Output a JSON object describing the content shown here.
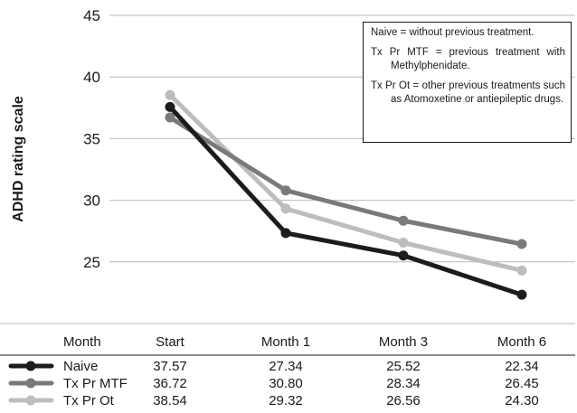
{
  "chart_data": {
    "type": "line",
    "ylabel": "ADHD rating scale",
    "ylim": [
      20,
      45
    ],
    "yticks": [
      25,
      30,
      35,
      40,
      45
    ],
    "grid": true,
    "x_header": "Month",
    "categories": [
      "Start",
      "Month 1",
      "Month 3",
      "Month 6"
    ],
    "series": [
      {
        "name": "Naive",
        "color": "#1c1c1c",
        "values": [
          37.57,
          27.34,
          25.52,
          22.34
        ],
        "labels": [
          "37.57",
          "27.34",
          "25.52",
          "22.34"
        ]
      },
      {
        "name": "Tx Pr MTF",
        "color": "#7a7a7a",
        "values": [
          36.72,
          30.8,
          28.34,
          26.45
        ],
        "labels": [
          "36.72",
          "30.80",
          "28.34",
          "26.45"
        ]
      },
      {
        "name": "Tx Pr Ot",
        "color": "#bdbdbd",
        "values": [
          38.54,
          29.32,
          26.56,
          24.3
        ],
        "labels": [
          "38.54",
          "29.32",
          "26.56",
          "24.30"
        ]
      }
    ],
    "notes": [
      "Naive = without previous treatment.",
      "Tx Pr MTF = previous treatment with Methylphenidate.",
      "Tx Pr Ot = other previous treatments such as Atomoxetine or antiepileptic drugs."
    ]
  }
}
